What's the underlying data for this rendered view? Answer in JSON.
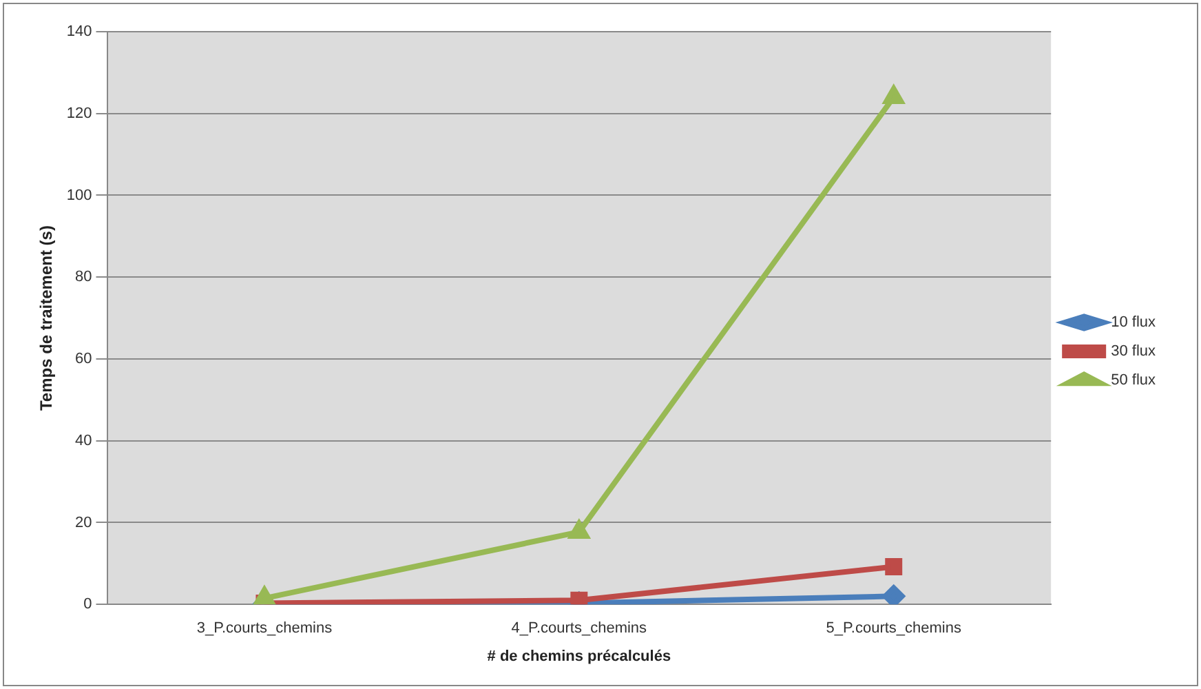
{
  "chart_data": {
    "type": "line",
    "xlabel": "# de chemins précalculés",
    "ylabel": "Temps de traitement (s)",
    "categories": [
      "3_P.courts_chemins",
      "4_P.courts_chemins",
      "5_P.courts_chemins"
    ],
    "series": [
      {
        "name": "10 flux",
        "color": "#4a7ebb",
        "values": [
          0.1,
          0.3,
          2
        ],
        "marker": "diamond"
      },
      {
        "name": "30 flux",
        "color": "#be4b48",
        "values": [
          0.3,
          1,
          9.2
        ],
        "marker": "square"
      },
      {
        "name": "50 flux",
        "color": "#98b954",
        "values": [
          1.5,
          17.7,
          124
        ],
        "marker": "triangle"
      }
    ],
    "ylim": [
      0,
      140
    ],
    "yticks": [
      0,
      20,
      40,
      60,
      80,
      100,
      120,
      140
    ],
    "grid": "y",
    "legend": "right"
  }
}
